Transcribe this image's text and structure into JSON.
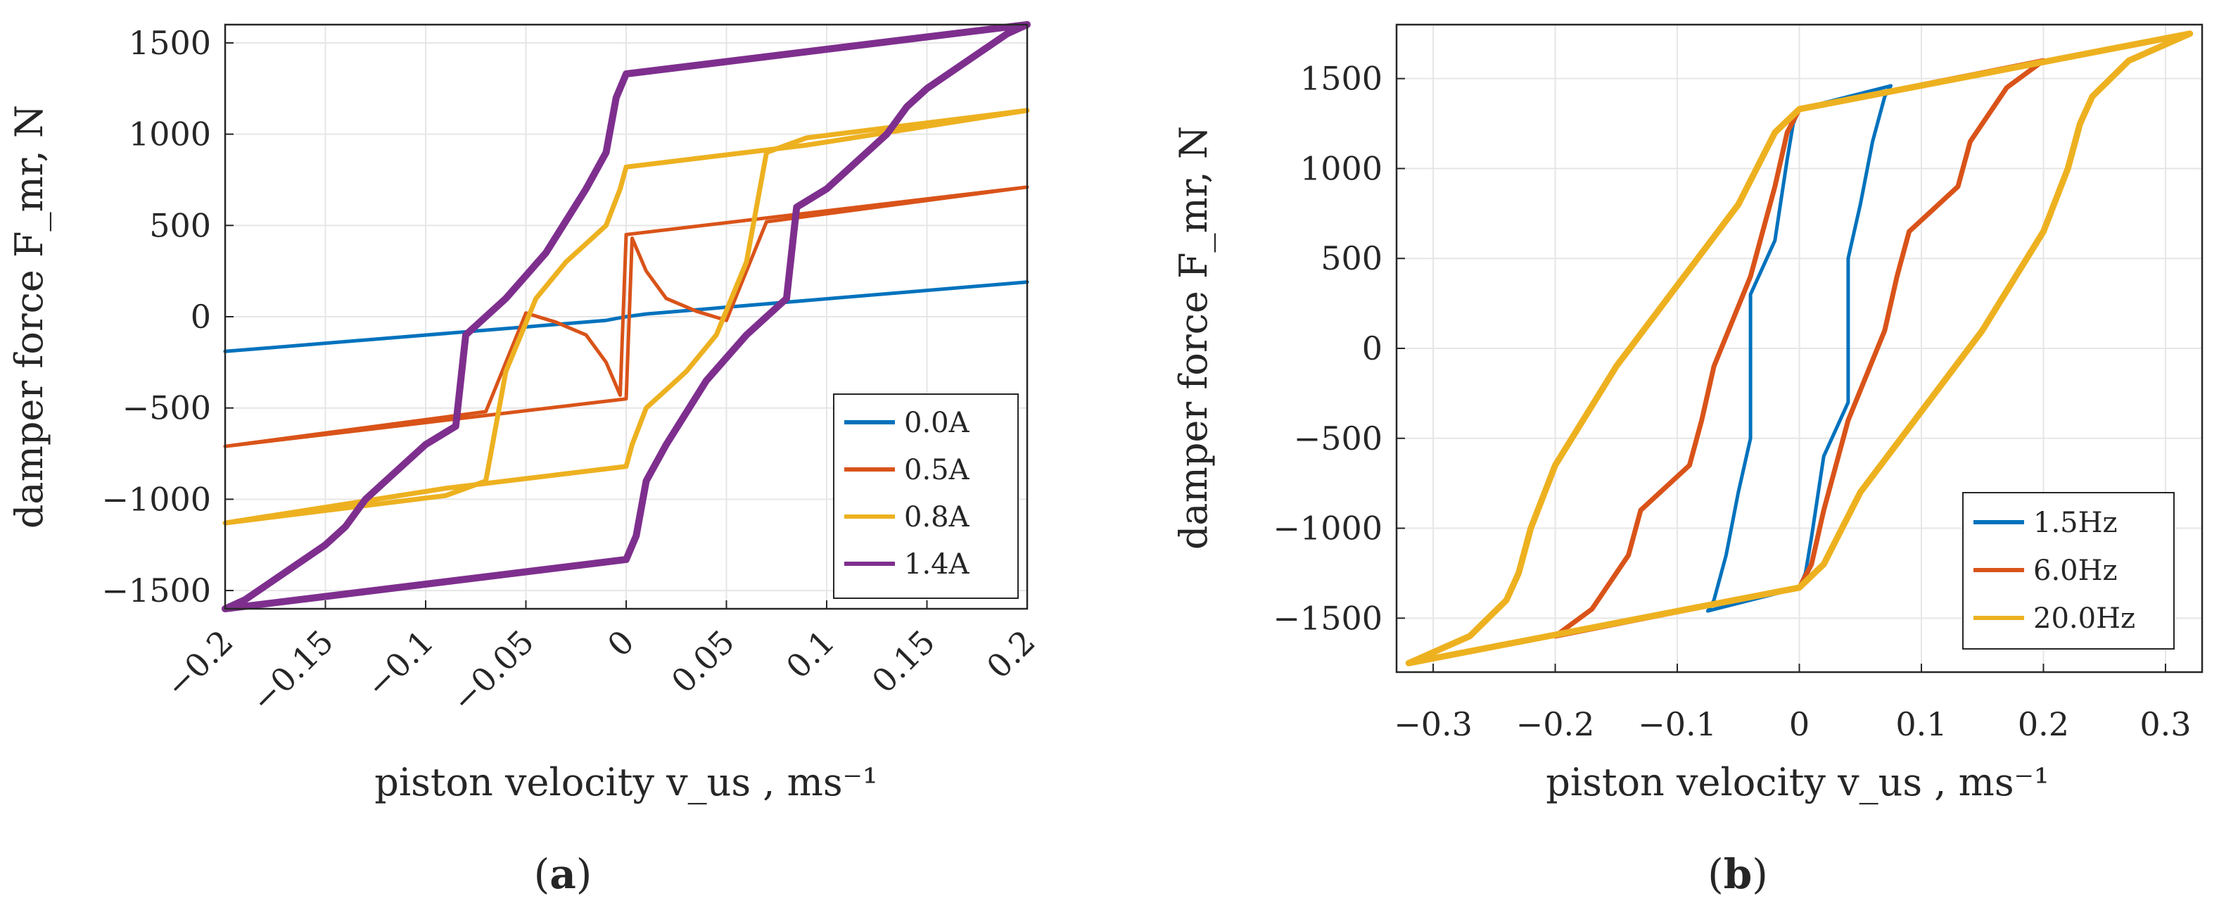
{
  "chart_data": [
    {
      "id": "a",
      "type": "line",
      "panel_label_open": "(",
      "panel_label_letter": "a",
      "panel_label_close": ")",
      "xlabel": "piston velocity v_us , ms⁻¹",
      "ylabel": "damper force F_mr, N",
      "xlim": [
        -0.2,
        0.2
      ],
      "ylim": [
        -1600,
        1600
      ],
      "grid": true,
      "legend_position": "bottom-right",
      "x_ticks": [
        -0.2,
        -0.15,
        -0.1,
        -0.05,
        0,
        0.05,
        0.1,
        0.15,
        0.2
      ],
      "x_tick_labels": [
        "−0.2",
        "−0.15",
        "−0.1",
        "−0.05",
        "0",
        "0.05",
        "0.1",
        "0.15",
        "0.2"
      ],
      "y_ticks": [
        -1500,
        -1000,
        -500,
        0,
        500,
        1000,
        1500
      ],
      "y_tick_labels": [
        "−1500",
        "−1000",
        "−500",
        "0",
        "500",
        "1000",
        "1500"
      ],
      "series": [
        {
          "name": "0.0A",
          "color": "#0072BD",
          "width": 5,
          "x": [
            -0.2,
            -0.01,
            0.0,
            0.01,
            0.2
          ],
          "y": [
            -190,
            -20,
            0,
            15,
            190
          ]
        },
        {
          "name": "0.5A",
          "color": "#D95319",
          "width": 5,
          "x": [
            -0.2,
            0.0,
            0.003,
            0.01,
            0.02,
            0.035,
            0.05,
            0.07,
            0.2,
            0.0,
            -0.003,
            -0.01,
            -0.02,
            -0.035,
            -0.05,
            -0.07,
            -0.2
          ],
          "y": [
            -710,
            -450,
            430,
            250,
            100,
            30,
            -20,
            520,
            710,
            450,
            -430,
            -250,
            -100,
            -30,
            20,
            -520,
            -710
          ]
        },
        {
          "name": "0.8A",
          "color": "#EDB120",
          "width": 7,
          "x": [
            -0.2,
            -0.09,
            0.0,
            0.003,
            0.01,
            0.02,
            0.03,
            0.045,
            0.06,
            0.07,
            0.09,
            0.2,
            0.09,
            0.0,
            -0.003,
            -0.01,
            -0.02,
            -0.03,
            -0.045,
            -0.06,
            -0.07,
            -0.09,
            -0.2
          ],
          "y": [
            -1130,
            -940,
            -820,
            -700,
            -500,
            -400,
            -300,
            -100,
            300,
            900,
            980,
            1130,
            940,
            820,
            700,
            500,
            400,
            300,
            100,
            -300,
            -900,
            -980,
            -1130
          ]
        },
        {
          "name": "1.4A",
          "color": "#7E2F8E",
          "width": 10,
          "x": [
            -0.2,
            0.0,
            0.005,
            0.01,
            0.02,
            0.04,
            0.06,
            0.08,
            0.082,
            0.085,
            0.1,
            0.12,
            0.13,
            0.14,
            0.15,
            0.17,
            0.19,
            0.2,
            0.0,
            -0.005,
            -0.01,
            -0.02,
            -0.04,
            -0.06,
            -0.08,
            -0.082,
            -0.085,
            -0.1,
            -0.12,
            -0.13,
            -0.14,
            -0.15,
            -0.17,
            -0.19,
            -0.2
          ],
          "y": [
            -1600,
            -1330,
            -1200,
            -900,
            -700,
            -350,
            -100,
            100,
            300,
            600,
            700,
            900,
            1000,
            1150,
            1250,
            1400,
            1550,
            1600,
            1330,
            1200,
            900,
            700,
            350,
            100,
            -100,
            -300,
            -600,
            -700,
            -900,
            -1000,
            -1150,
            -1250,
            -1400,
            -1550,
            -1600
          ]
        }
      ]
    },
    {
      "id": "b",
      "type": "line",
      "panel_label_open": "(",
      "panel_label_letter": "b",
      "panel_label_close": ")",
      "xlabel": "piston velocity v_us , ms⁻¹",
      "ylabel": "damper force F_mr, N",
      "xlim": [
        -0.33,
        0.33
      ],
      "ylim": [
        -1800,
        1800
      ],
      "grid": true,
      "legend_position": "bottom-right",
      "x_ticks": [
        -0.3,
        -0.2,
        -0.1,
        0,
        0.1,
        0.2,
        0.3
      ],
      "x_tick_labels": [
        "−0.3",
        "−0.2",
        "−0.1",
        "0",
        "0.1",
        "0.2",
        "0.3"
      ],
      "y_ticks": [
        -1500,
        -1000,
        -500,
        0,
        500,
        1000,
        1500
      ],
      "y_tick_labels": [
        "−1500",
        "−1000",
        "−500",
        "0",
        "500",
        "1000",
        "1500"
      ],
      "series": [
        {
          "name": "1.5Hz",
          "color": "#0072BD",
          "width": 5,
          "x": [
            -0.075,
            0.0,
            0.005,
            0.01,
            0.02,
            0.04,
            0.04,
            0.05,
            0.06,
            0.07,
            0.075,
            0.0,
            -0.005,
            -0.01,
            -0.02,
            -0.04,
            -0.04,
            -0.05,
            -0.06,
            -0.07,
            -0.075
          ],
          "y": [
            -1460,
            -1330,
            -1250,
            -1050,
            -600,
            -300,
            500,
            800,
            1150,
            1400,
            1460,
            1330,
            1250,
            1050,
            600,
            300,
            -500,
            -800,
            -1150,
            -1400,
            -1460
          ]
        },
        {
          "name": "6.0Hz",
          "color": "#D95319",
          "width": 7,
          "x": [
            -0.2,
            0.0,
            0.01,
            0.02,
            0.04,
            0.07,
            0.08,
            0.09,
            0.13,
            0.14,
            0.17,
            0.2,
            0.0,
            -0.01,
            -0.02,
            -0.04,
            -0.07,
            -0.08,
            -0.09,
            -0.13,
            -0.14,
            -0.17,
            -0.2
          ],
          "y": [
            -1600,
            -1330,
            -1200,
            -900,
            -400,
            100,
            400,
            650,
            900,
            1150,
            1450,
            1600,
            1330,
            1200,
            900,
            400,
            -100,
            -400,
            -650,
            -900,
            -1150,
            -1450,
            -1600
          ]
        },
        {
          "name": "20.0Hz",
          "color": "#EDB120",
          "width": 9,
          "x": [
            -0.32,
            0.0,
            0.02,
            0.05,
            0.1,
            0.15,
            0.2,
            0.22,
            0.23,
            0.24,
            0.27,
            0.32,
            0.0,
            -0.02,
            -0.05,
            -0.1,
            -0.15,
            -0.2,
            -0.22,
            -0.23,
            -0.24,
            -0.27,
            -0.32
          ],
          "y": [
            -1750,
            -1330,
            -1200,
            -800,
            -350,
            100,
            650,
            1000,
            1250,
            1400,
            1600,
            1750,
            1330,
            1200,
            800,
            350,
            -100,
            -650,
            -1000,
            -1250,
            -1400,
            -1600,
            -1750
          ]
        }
      ]
    }
  ]
}
